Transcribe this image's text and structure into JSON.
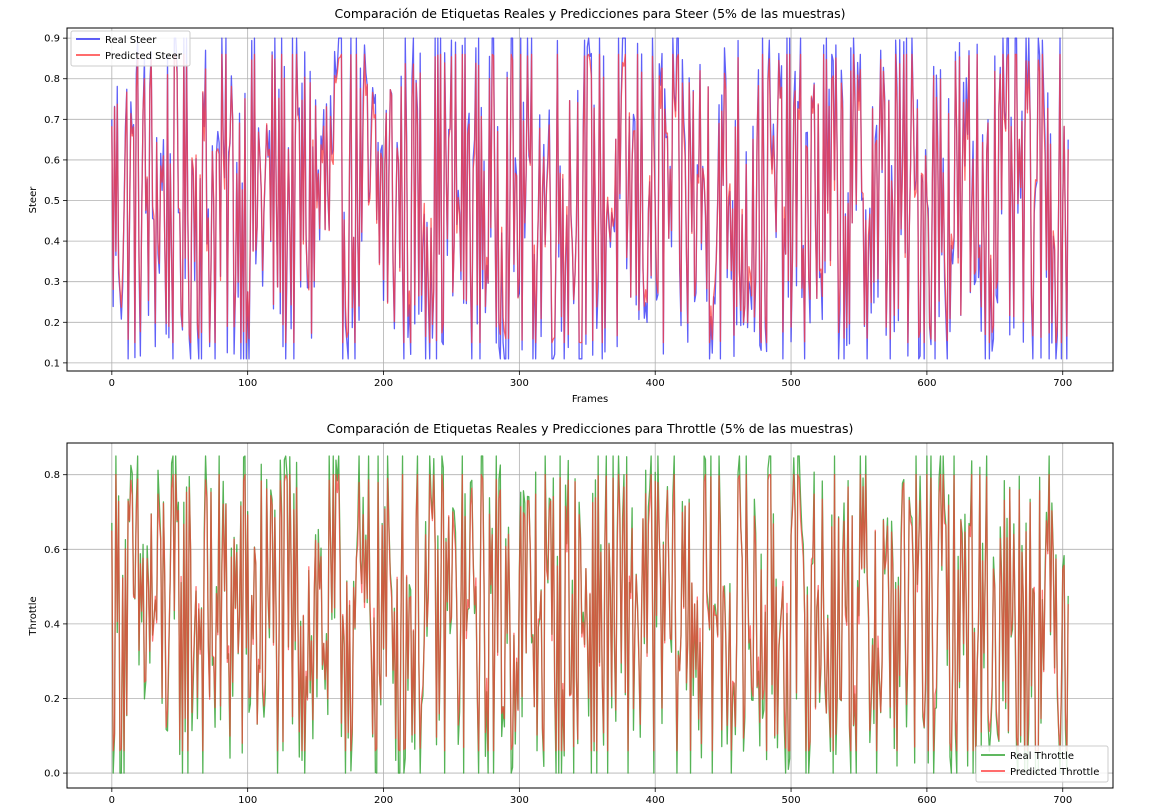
{
  "chart_data": [
    {
      "type": "line",
      "title": "Comparación de Etiquetas Reales y Predicciones para Steer (5% de las muestras)",
      "xlabel": "Frames",
      "ylabel": "Steer",
      "xlim": [
        -33,
        737
      ],
      "ylim": [
        0.08,
        0.925
      ],
      "xticks": [
        0,
        100,
        200,
        300,
        400,
        500,
        600,
        700
      ],
      "yticks": [
        0.1,
        0.2,
        0.3,
        0.4,
        0.5,
        0.6,
        0.7,
        0.8,
        0.9
      ],
      "ytick_labels": [
        "0.1",
        "0.2",
        "0.3",
        "0.4",
        "0.5",
        "0.6",
        "0.7",
        "0.8",
        "0.9"
      ],
      "grid": true,
      "legend_position": "upper-left",
      "n_points": 705,
      "series": [
        {
          "name": "Real Steer",
          "color": "#2b2bf5",
          "alpha": 0.75,
          "range": [
            0.11,
            0.9
          ],
          "values": []
        },
        {
          "name": "Predicted Steer",
          "color": "#ff3b3b",
          "alpha": 0.75,
          "range": [
            0.15,
            0.86
          ],
          "values": []
        }
      ]
    },
    {
      "type": "line",
      "title": "Comparación de Etiquetas Reales y Predicciones para Throttle (5% de las muestras)",
      "xlabel": "Frames",
      "ylabel": "Throttle",
      "xlim": [
        -33,
        737
      ],
      "ylim": [
        -0.04,
        0.885
      ],
      "xticks": [
        0,
        100,
        200,
        300,
        400,
        500,
        600,
        700
      ],
      "yticks": [
        0.0,
        0.2,
        0.4,
        0.6,
        0.8
      ],
      "ytick_labels": [
        "0.0",
        "0.2",
        "0.4",
        "0.6",
        "0.8"
      ],
      "grid": true,
      "legend_position": "lower-right",
      "n_points": 705,
      "series": [
        {
          "name": "Real Throttle",
          "color": "#2ca02c",
          "alpha": 0.8,
          "range": [
            0.0,
            0.85
          ],
          "values": []
        },
        {
          "name": "Predicted Throttle",
          "color": "#ff3b3b",
          "alpha": 0.7,
          "range": [
            0.06,
            0.8
          ],
          "values": []
        }
      ]
    }
  ]
}
